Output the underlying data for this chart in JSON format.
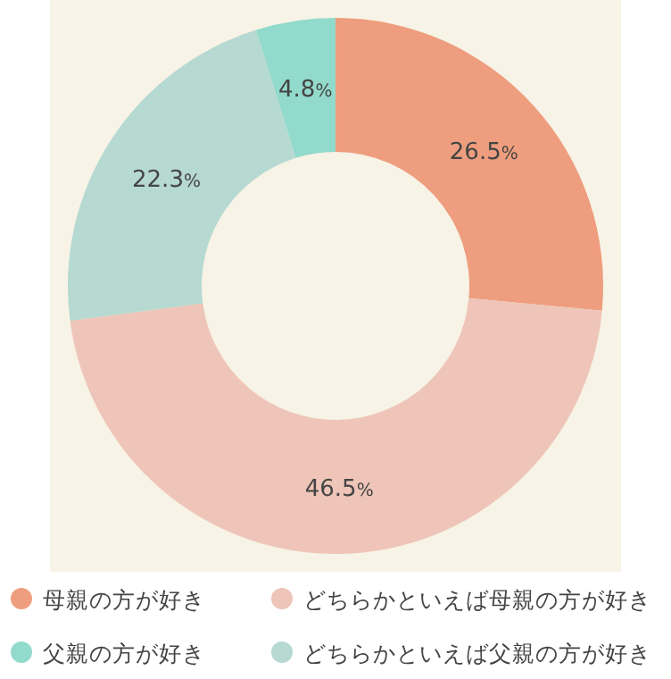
{
  "chart_data": {
    "type": "donut",
    "categories": [
      "母親の方が好き",
      "どちらかといえば母親の方が好き",
      "どちらかといえば父親の方が好き",
      "父親の方が好き"
    ],
    "values": [
      26.5,
      46.5,
      22.3,
      4.8
    ],
    "colors": [
      "#ee9e7e",
      "#eec5b8",
      "#b6d9d1",
      "#92dacb"
    ],
    "value_labels": [
      "26.5%",
      "46.5%",
      "22.3%",
      "4.8%"
    ],
    "legend": "bottom"
  }
}
